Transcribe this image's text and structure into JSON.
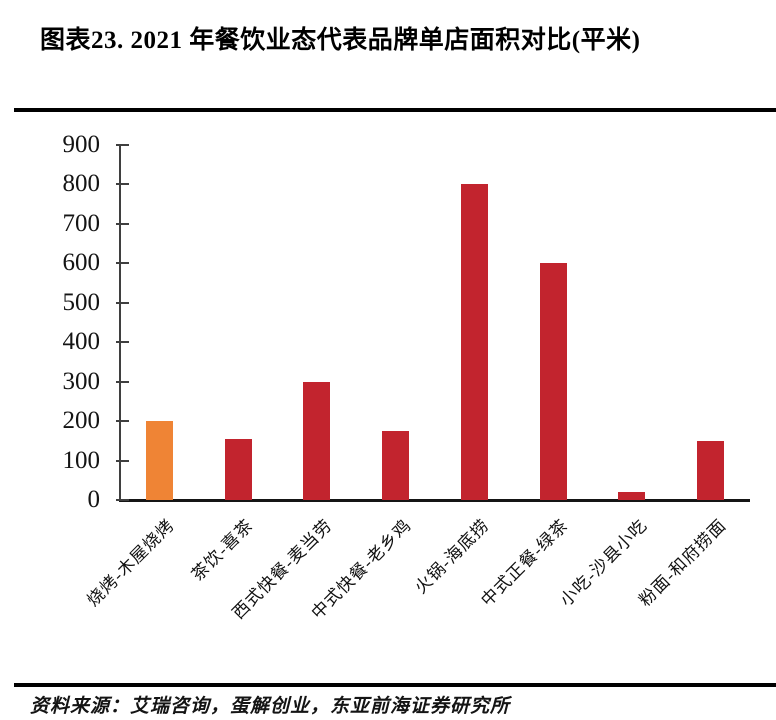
{
  "title": {
    "text": "图表23. 2021 年餐饮业态代表品牌单店面积对比(平米)"
  },
  "chart_data": {
    "type": "bar",
    "title": "2021年餐饮业态代表品牌单店面积对比(平米)",
    "categories": [
      "烧烤-木屋烧烤",
      "茶饮-喜茶",
      "西式快餐-麦当劳",
      "中式快餐-老乡鸡",
      "火锅-海底捞",
      "中式正餐-绿茶",
      "小吃-沙县小吃",
      "粉面-和府捞面"
    ],
    "values": [
      200,
      155,
      300,
      175,
      800,
      600,
      20,
      150
    ],
    "xlabel": "",
    "ylabel": "",
    "ylim": [
      0,
      900
    ],
    "ytick_step": 100,
    "grid": false,
    "legend": "none",
    "bar_color": "#C2242E",
    "highlight_color": "#EF8435",
    "highlight_index": 0
  },
  "source": {
    "text": "资料来源：艾瑞咨询，蛋解创业，东亚前海证券研究所"
  }
}
